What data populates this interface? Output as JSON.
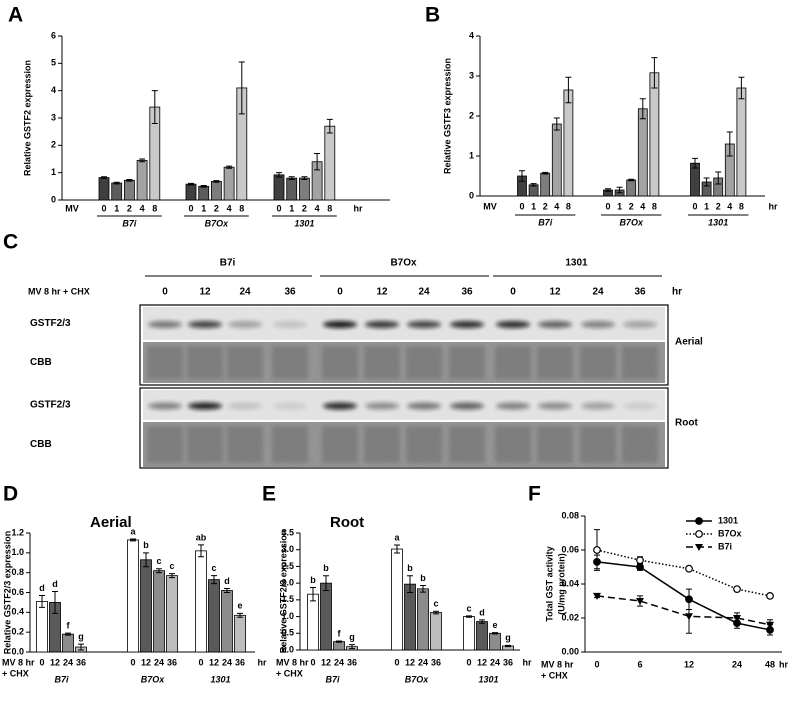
{
  "chart_data": [
    {
      "panel": "A",
      "type": "bar",
      "y_label": "Relative GSTF2 expression",
      "ylim": [
        0,
        6
      ],
      "yticks": [
        0,
        1,
        2,
        3,
        4,
        5,
        6
      ],
      "baseline_label": "MV",
      "x_unit": "hr",
      "colors": [
        "#3f3f3f",
        "#5c5c5c",
        "#7d7d7d",
        "#a3a3a3",
        "#c9c9c9"
      ],
      "groups": [
        {
          "name": "B7i",
          "categories": [
            "0",
            "1",
            "2",
            "4",
            "8"
          ],
          "values": [
            0.82,
            0.62,
            0.72,
            1.45,
            3.4
          ],
          "errors": [
            0.03,
            0.03,
            0.03,
            0.05,
            0.6
          ]
        },
        {
          "name": "B7Ox",
          "categories": [
            "0",
            "1",
            "2",
            "4",
            "8"
          ],
          "values": [
            0.58,
            0.5,
            0.68,
            1.2,
            4.1
          ],
          "errors": [
            0.03,
            0.03,
            0.03,
            0.04,
            0.95
          ]
        },
        {
          "name": "1301",
          "categories": [
            "0",
            "1",
            "2",
            "4",
            "8"
          ],
          "values": [
            0.92,
            0.8,
            0.8,
            1.4,
            2.7
          ],
          "errors": [
            0.08,
            0.05,
            0.05,
            0.3,
            0.25
          ]
        }
      ]
    },
    {
      "panel": "B",
      "type": "bar",
      "y_label": "Relative GSTF3 expression",
      "ylim": [
        0,
        4
      ],
      "yticks": [
        0,
        1,
        2,
        3,
        4
      ],
      "baseline_label": "MV",
      "x_unit": "hr",
      "colors": [
        "#3f3f3f",
        "#5c5c5c",
        "#7d7d7d",
        "#a3a3a3",
        "#c9c9c9"
      ],
      "groups": [
        {
          "name": "B7i",
          "categories": [
            "0",
            "1",
            "2",
            "4",
            "8"
          ],
          "values": [
            0.5,
            0.28,
            0.57,
            1.8,
            2.65
          ],
          "errors": [
            0.13,
            0.03,
            0.02,
            0.15,
            0.32
          ]
        },
        {
          "name": "B7Ox",
          "categories": [
            "0",
            "1",
            "2",
            "4",
            "8"
          ],
          "values": [
            0.15,
            0.15,
            0.4,
            2.18,
            3.08
          ],
          "errors": [
            0.03,
            0.07,
            0.02,
            0.25,
            0.38
          ]
        },
        {
          "name": "1301",
          "categories": [
            "0",
            "1",
            "2",
            "4",
            "8"
          ],
          "values": [
            0.82,
            0.35,
            0.45,
            1.3,
            2.7
          ],
          "errors": [
            0.12,
            0.1,
            0.15,
            0.3,
            0.27
          ]
        }
      ]
    },
    {
      "panel": "D",
      "type": "bar",
      "title": "Aerial",
      "y_label": "Relative GSTF2/3 expression",
      "ylim": [
        0,
        1.2
      ],
      "yticks": [
        {
          "value": 0,
          "label": "0.0"
        },
        {
          "value": 0.2,
          "label": "0.2"
        },
        {
          "value": 0.4,
          "label": "0.4"
        },
        {
          "value": 0.6,
          "label": "0.6"
        },
        {
          "value": 0.8,
          "label": "0.8"
        },
        {
          "value": 1,
          "label": "1.0"
        },
        {
          "value": 1.2,
          "label": "1.2"
        }
      ],
      "x_label": [
        "MV 8 hr",
        "+ CHX"
      ],
      "x_unit": "hr",
      "colors": [
        "#ffffff",
        "#5a5a5a",
        "#8c8c8c",
        "#bdbdbd"
      ],
      "groups": [
        {
          "name": "B7i",
          "categories": [
            "0",
            "12",
            "24",
            "36"
          ],
          "values": [
            0.51,
            0.5,
            0.18,
            0.05
          ],
          "errors": [
            0.06,
            0.11,
            0.01,
            0.03
          ],
          "letters": [
            "d",
            "d",
            "f",
            "g"
          ]
        },
        {
          "name": "B7Ox",
          "categories": [
            "0",
            "12",
            "24",
            "36"
          ],
          "values": [
            1.13,
            0.93,
            0.82,
            0.77
          ],
          "errors": [
            0.01,
            0.07,
            0.02,
            0.02
          ],
          "letters": [
            "a",
            "b",
            "c",
            "c"
          ]
        },
        {
          "name": "1301",
          "categories": [
            "0",
            "12",
            "24",
            "36"
          ],
          "values": [
            1.02,
            0.73,
            0.62,
            0.37
          ],
          "errors": [
            0.06,
            0.04,
            0.02,
            0.02
          ],
          "letters": [
            "ab",
            "c",
            "d",
            "e"
          ]
        }
      ]
    },
    {
      "panel": "E",
      "type": "bar",
      "title": "Root",
      "y_label": "Relative GSTF2/3 expression",
      "ylim": [
        0,
        3.5
      ],
      "yticks": [
        {
          "value": 0,
          "label": "0.0"
        },
        {
          "value": 0.5,
          "label": "0.5"
        },
        {
          "value": 1,
          "label": "1.0"
        },
        {
          "value": 1.5,
          "label": "1.5"
        },
        {
          "value": 2,
          "label": "2.0"
        },
        {
          "value": 2.5,
          "label": "2.5"
        },
        {
          "value": 3,
          "label": "3.0"
        },
        {
          "value": 3.5,
          "label": "3.5"
        }
      ],
      "x_label": [
        "MV 8 hr",
        "+ CHX"
      ],
      "x_unit": "hr",
      "colors": [
        "#ffffff",
        "#5a5a5a",
        "#8c8c8c",
        "#bdbdbd"
      ],
      "groups": [
        {
          "name": "B7i",
          "categories": [
            "0",
            "12",
            "24",
            "36"
          ],
          "values": [
            1.67,
            2.0,
            0.25,
            0.1
          ],
          "errors": [
            0.2,
            0.22,
            0.02,
            0.06
          ],
          "letters": [
            "b",
            "b",
            "f",
            "g"
          ]
        },
        {
          "name": "B7Ox",
          "categories": [
            "0",
            "12",
            "24",
            "36"
          ],
          "values": [
            3.02,
            1.97,
            1.83,
            1.12
          ],
          "errors": [
            0.12,
            0.25,
            0.1,
            0.04
          ],
          "letters": [
            "a",
            "b",
            "b",
            "c"
          ]
        },
        {
          "name": "1301",
          "categories": [
            "0",
            "12",
            "24",
            "36"
          ],
          "values": [
            1.0,
            0.85,
            0.5,
            0.12
          ],
          "errors": [
            0.02,
            0.05,
            0.02,
            0.02
          ],
          "letters": [
            "c",
            "d",
            "e",
            "g"
          ]
        }
      ]
    },
    {
      "panel": "F",
      "type": "line",
      "y_label": [
        "Total GST activity",
        "(U/mg protein)"
      ],
      "ylim": [
        0,
        0.08
      ],
      "yticks": [
        {
          "value": 0,
          "label": "0.00"
        },
        {
          "value": 0.02,
          "label": "0.02"
        },
        {
          "value": 0.04,
          "label": "0.04"
        },
        {
          "value": 0.06,
          "label": "0.06"
        },
        {
          "value": 0.08,
          "label": "0.08"
        }
      ],
      "x_label": [
        "MV 8 hr",
        "+ CHX"
      ],
      "x_unit": "hr",
      "categories": [
        "0",
        "6",
        "12",
        "24",
        "48"
      ],
      "legend": "upper right",
      "series": [
        {
          "name": "1301",
          "color": "#000000",
          "style": "solid",
          "marker": "filled-circle",
          "values": [
            0.053,
            0.05,
            0.031,
            0.017,
            0.013
          ],
          "errors": [
            0.004,
            0.002,
            0.006,
            0.003,
            0.003
          ]
        },
        {
          "name": "B7Ox",
          "color": "#000000",
          "style": "dotted",
          "marker": "open-circle",
          "values": [
            0.06,
            0.054,
            0.049,
            0.037,
            0.033
          ],
          "errors": [
            0.012,
            0.002,
            0.001,
            0.001,
            0.001
          ]
        },
        {
          "name": "B7i",
          "color": "#000000",
          "style": "dashed",
          "marker": "triangle",
          "values": [
            0.033,
            0.03,
            0.021,
            0.02,
            0.016
          ],
          "errors": [
            0.001,
            0.003,
            0.01,
            0.003,
            0.003
          ]
        }
      ]
    }
  ],
  "blot": {
    "panel": "C",
    "condition": "MV 8 hr + CHX",
    "unit": "hr",
    "groups": [
      {
        "name": "B7i",
        "times": [
          "0",
          "12",
          "24",
          "36"
        ]
      },
      {
        "name": "B7Ox",
        "times": [
          "0",
          "12",
          "24",
          "36"
        ]
      },
      {
        "name": "1301",
        "times": [
          "0",
          "12",
          "24",
          "36"
        ]
      }
    ],
    "tissues": [
      {
        "name": "Aerial",
        "rows": [
          "GSTF2/3",
          "CBB"
        ]
      },
      {
        "name": "Root",
        "rows": [
          "GSTF2/3",
          "CBB"
        ]
      }
    ]
  }
}
